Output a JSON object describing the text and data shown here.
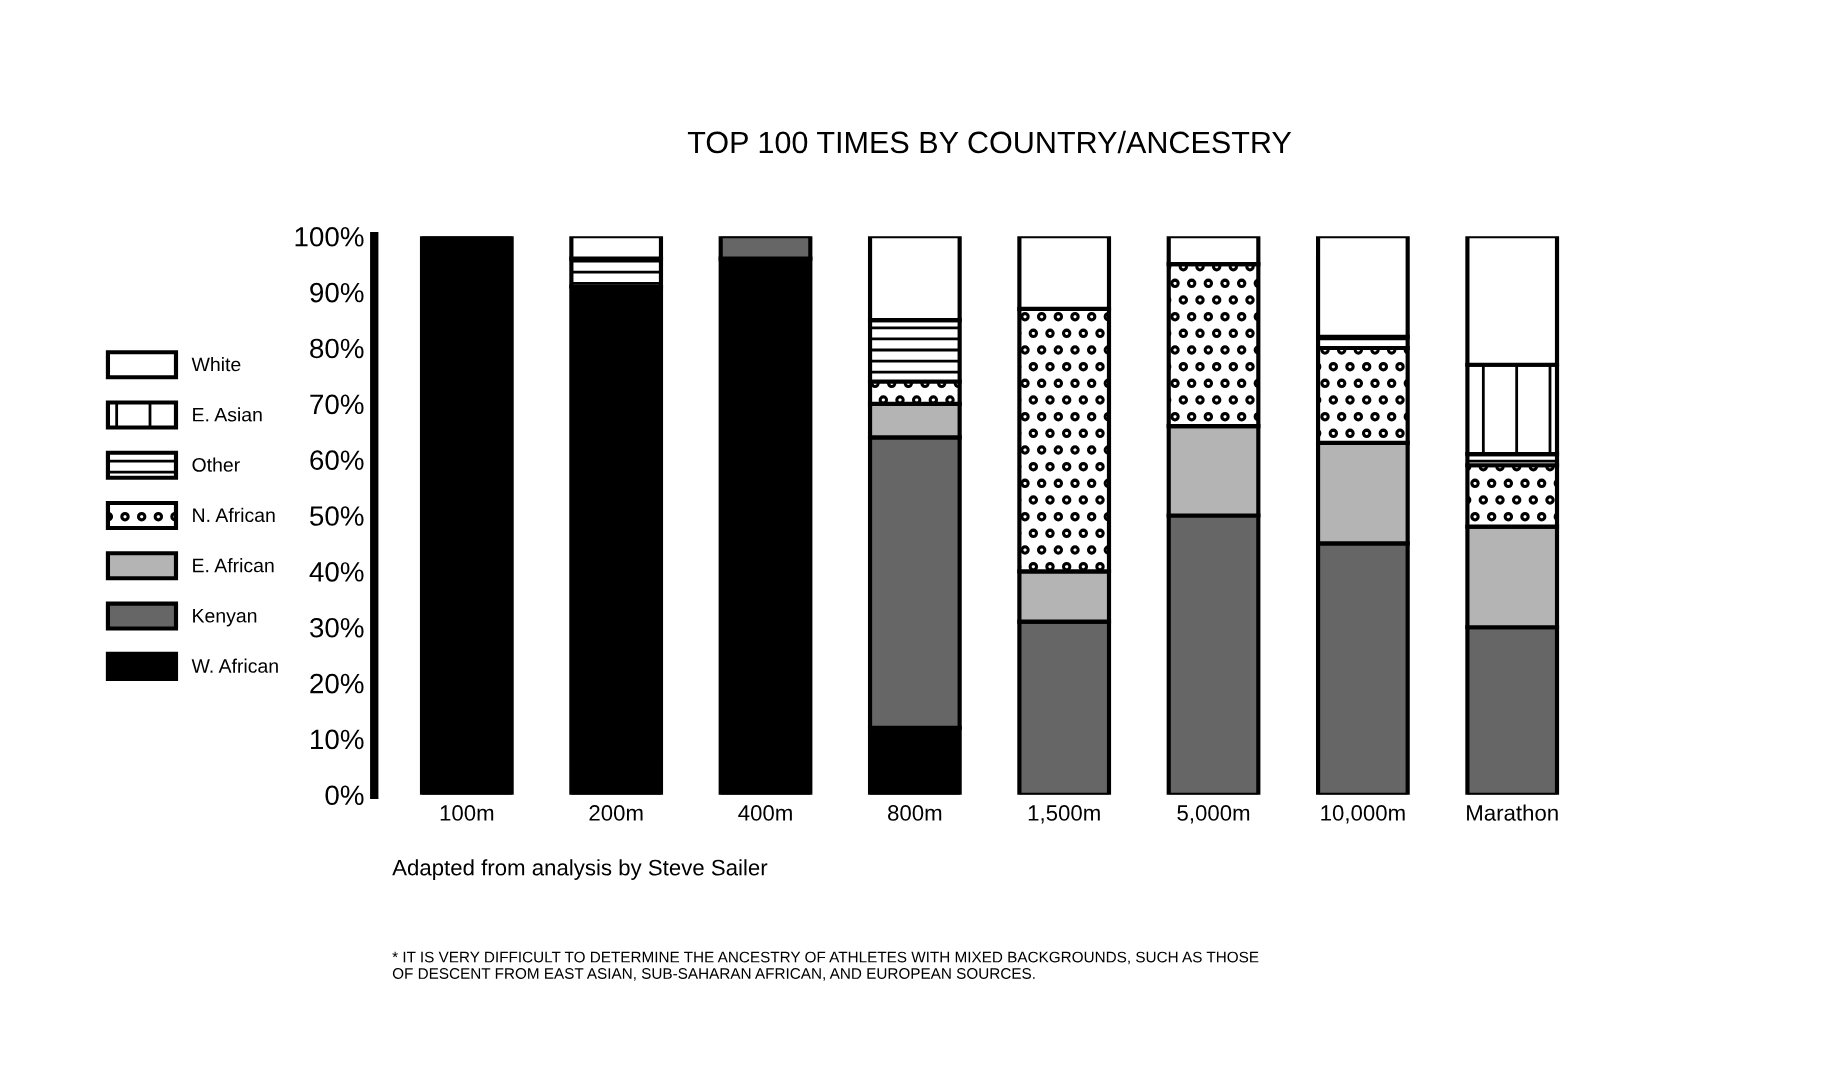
{
  "chart_data": {
    "type": "bar",
    "stacked": true,
    "title": "TOP 100 TIMES BY COUNTRY/ANCESTRY",
    "categories": [
      "100m",
      "200m",
      "400m",
      "800m",
      "1,500m",
      "5,000m",
      "10,000m",
      "Marathon"
    ],
    "series": [
      {
        "name": "W. African",
        "color": "#000000",
        "values": [
          100,
          91,
          96,
          12,
          0,
          0,
          0,
          0
        ]
      },
      {
        "name": "Kenyan",
        "color": "#666666",
        "values": [
          0,
          0,
          4,
          52,
          31,
          50,
          45,
          30
        ]
      },
      {
        "name": "E. African",
        "color": "#b4b4b4",
        "values": [
          0,
          0,
          0,
          6,
          9,
          16,
          18,
          18
        ]
      },
      {
        "name": "N. African",
        "color": "#000000",
        "values": [
          0,
          0,
          0,
          4,
          47,
          29,
          17,
          11
        ]
      },
      {
        "name": "Other",
        "color": "#000000",
        "values": [
          0,
          5,
          0,
          11,
          0,
          0,
          2,
          2
        ]
      },
      {
        "name": "E. Asian",
        "color": "#000000",
        "values": [
          0,
          0,
          0,
          0,
          0,
          0,
          0,
          16
        ]
      },
      {
        "name": "White",
        "color": "#ffffff",
        "values": [
          0,
          4,
          0,
          15,
          13,
          5,
          18,
          23
        ]
      }
    ],
    "ylim": [
      0,
      100
    ],
    "yticks": [
      {
        "value": 0,
        "label": "0%"
      },
      {
        "value": 10,
        "label": "10%"
      },
      {
        "value": 20,
        "label": "20%"
      },
      {
        "value": 30,
        "label": "30%"
      },
      {
        "value": 40,
        "label": "40%"
      },
      {
        "value": 50,
        "label": "50%"
      },
      {
        "value": 60,
        "label": "60%"
      },
      {
        "value": 70,
        "label": "70%"
      },
      {
        "value": 80,
        "label": "80%"
      },
      {
        "value": 90,
        "label": "90%"
      },
      {
        "value": 100,
        "label": "100%"
      }
    ],
    "grid": false,
    "legend": "left",
    "annotations": [
      "Adapted from analysis by Steve Sailer",
      "* IT IS VERY DIFFICULT TO DETERMINE THE ANCESTRY OF ATHLETES WITH MIXED BACKGROUNDS, SUCH AS THOSE\nOF DESCENT FROM EAST ASIAN, SUB-SAHARAN AFRICAN, AND EUROPEAN SOURCES."
    ]
  }
}
